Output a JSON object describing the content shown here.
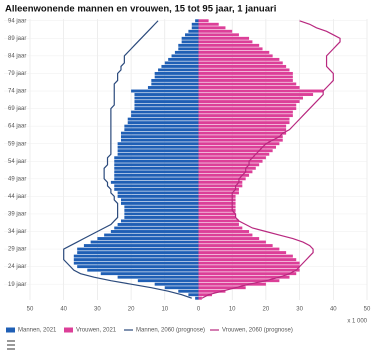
{
  "chart_data": {
    "type": "pyramid",
    "title": "Alleenwonende mannen en vrouwen, 15 tot 95 jaar, 1 januari",
    "categories": [
      null,
      null,
      null,
      null,
      "19 jaar",
      null,
      null,
      null,
      null,
      "24 jaar",
      null,
      null,
      null,
      null,
      "29 jaar",
      null,
      null,
      null,
      null,
      "34 jaar",
      null,
      null,
      null,
      null,
      "39 jaar",
      null,
      null,
      null,
      null,
      "44 jaar",
      null,
      null,
      null,
      null,
      "49 jaar",
      null,
      null,
      null,
      null,
      "54 jaar",
      null,
      null,
      null,
      null,
      "59 jaar",
      null,
      null,
      null,
      null,
      "64 jaar",
      null,
      null,
      null,
      null,
      "69 jaar",
      null,
      null,
      null,
      null,
      "74 jaar",
      null,
      null,
      null,
      null,
      "79 jaar",
      null,
      null,
      null,
      null,
      "84 jaar",
      null,
      null,
      null,
      null,
      "89 jaar",
      null,
      null,
      null,
      null,
      "94 jaar"
    ],
    "series": [
      {
        "name": "Mannen, 2021",
        "type": "bar",
        "side": "left",
        "color": "#1f5fb5",
        "values": [
          1,
          3,
          6,
          10,
          13,
          18,
          24,
          29,
          33,
          36,
          37,
          37,
          37,
          36,
          36,
          34,
          32,
          30,
          28,
          26,
          25,
          24,
          23,
          22,
          22,
          22,
          22,
          23,
          23,
          24,
          24,
          25,
          25,
          26,
          25,
          25,
          25,
          25,
          25,
          25,
          25,
          24,
          24,
          24,
          24,
          23,
          23,
          23,
          22,
          22,
          21,
          21,
          20,
          20,
          19,
          19,
          19,
          19,
          19,
          20,
          15,
          14,
          14,
          13,
          13,
          12,
          11,
          10,
          9,
          8,
          7,
          6,
          6,
          5,
          5,
          4,
          3,
          2,
          2,
          1
        ]
      },
      {
        "name": "Vrouwen, 2021",
        "type": "bar",
        "side": "right",
        "color": "#dc3f98",
        "values": [
          1,
          4,
          8,
          14,
          20,
          24,
          27,
          29,
          30,
          30,
          30,
          29,
          28,
          26,
          24,
          22,
          20,
          18,
          16,
          15,
          13,
          12,
          12,
          11,
          11,
          11,
          11,
          11,
          11,
          11,
          12,
          12,
          13,
          13,
          14,
          15,
          16,
          17,
          18,
          19,
          20,
          21,
          22,
          23,
          24,
          25,
          25,
          26,
          26,
          26,
          27,
          27,
          28,
          28,
          29,
          29,
          30,
          31,
          34,
          37,
          30,
          29,
          28,
          28,
          28,
          27,
          26,
          25,
          24,
          22,
          21,
          19,
          18,
          16,
          15,
          12,
          10,
          8,
          6,
          3
        ]
      },
      {
        "name": "Mannen, 2060 (prognose)",
        "type": "line",
        "side": "left",
        "color": "#2b4a7c",
        "values": [
          2,
          5,
          9,
          14,
          20,
          26,
          31,
          35,
          37,
          38,
          39,
          40,
          40,
          40,
          40,
          38,
          36,
          34,
          32,
          30,
          28,
          26,
          25,
          24,
          24,
          24,
          24,
          24,
          25,
          25,
          26,
          26,
          27,
          27,
          28,
          28,
          28,
          28,
          27,
          27,
          27,
          26,
          26,
          26,
          26,
          26,
          26,
          26,
          26,
          26,
          26,
          26,
          26,
          26,
          26,
          25,
          25,
          25,
          25,
          25,
          25,
          25,
          24,
          24,
          24,
          23,
          23,
          22,
          22,
          22,
          21,
          20,
          19,
          18,
          17,
          16,
          15,
          14,
          13,
          12
        ]
      },
      {
        "name": "Vrouwen, 2060 (prognose)",
        "type": "line",
        "side": "right",
        "color": "#b8287f",
        "values": [
          1,
          3,
          7,
          11,
          15,
          20,
          24,
          27,
          29,
          30,
          31,
          32,
          33,
          34,
          34,
          33,
          31,
          28,
          24,
          20,
          16,
          14,
          12,
          11,
          11,
          10,
          10,
          10,
          10,
          10,
          10,
          11,
          11,
          12,
          12,
          13,
          14,
          14,
          15,
          15,
          16,
          17,
          18,
          19,
          20,
          22,
          24,
          25,
          27,
          28,
          29,
          30,
          31,
          32,
          33,
          34,
          35,
          36,
          37,
          37,
          38,
          39,
          40,
          40,
          40,
          39,
          38,
          38,
          38,
          38,
          39,
          40,
          41,
          42,
          42,
          40,
          38,
          35,
          33,
          30
        ]
      }
    ],
    "xlim": [
      -50,
      50
    ],
    "xticks": [
      {
        "value": -50,
        "label": "50"
      },
      {
        "value": -40,
        "label": "40"
      },
      {
        "value": -30,
        "label": "30"
      },
      {
        "value": -20,
        "label": "20"
      },
      {
        "value": -10,
        "label": "10"
      },
      0,
      10,
      20,
      30,
      40,
      50
    ],
    "xunit": "x 1 000",
    "grid": true
  }
}
